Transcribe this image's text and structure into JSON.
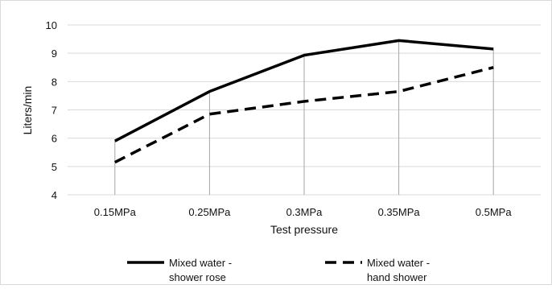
{
  "chart_data": {
    "type": "line",
    "title": "",
    "xlabel": "Test pressure",
    "ylabel": "Liters/min",
    "categories": [
      "0.15MPa",
      "0.25MPa",
      "0.3MPa",
      "0.35MPa",
      "0.5MPa"
    ],
    "ylim": [
      4,
      10
    ],
    "yticks": [
      "4",
      "5",
      "6",
      "7",
      "8",
      "9",
      "10"
    ],
    "grid": "horizontal gridlines",
    "drop_lines": true,
    "legend_position": "bottom",
    "series": [
      {
        "name_lines": [
          "Mixed water -",
          "shower rose"
        ],
        "values": [
          5.9,
          7.65,
          8.93,
          9.45,
          9.15
        ],
        "color": "#000000",
        "style": "solid"
      },
      {
        "name_lines": [
          "Mixed water -",
          "hand shower"
        ],
        "values": [
          5.15,
          6.85,
          7.3,
          7.65,
          8.5
        ],
        "color": "#000000",
        "style": "dashed"
      }
    ]
  }
}
